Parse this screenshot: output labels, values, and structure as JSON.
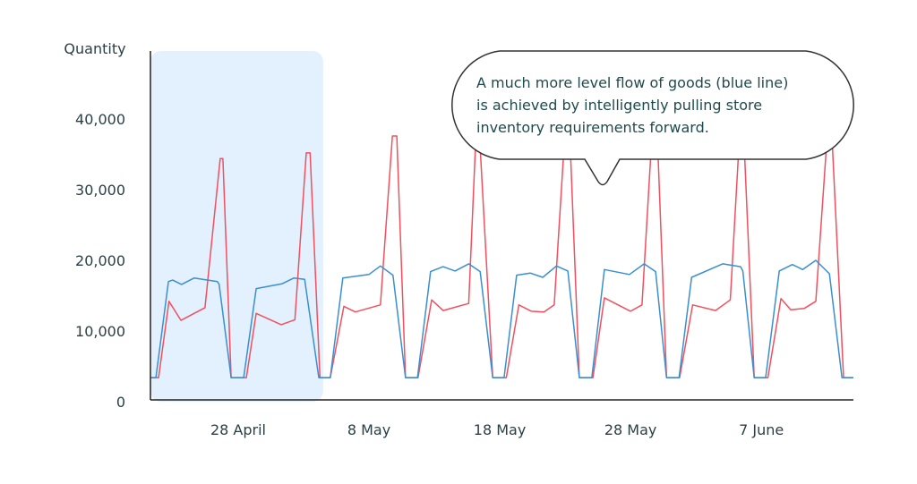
{
  "chart_data": {
    "type": "line",
    "title": "",
    "xlabel": "",
    "ylabel": "Quantity",
    "xlim": [
      "Apr 21 07:00",
      "Jun 14 01:00"
    ],
    "ylim": [
      0,
      50000
    ],
    "yticks": [
      0,
      10000,
      20000,
      30000,
      40000
    ],
    "ytick_labels": [
      "0",
      "10,000",
      "20,000",
      "30,000",
      "40,000"
    ],
    "xticks": [
      "Apr 28 00:00",
      "May 8 00:00",
      "May 18 00:00",
      "May 28 00:00",
      "Jun 7 00:00"
    ],
    "xtick_labels": [
      "28 April",
      "8 May",
      "18 May",
      "28 May",
      "7 June"
    ],
    "grid": false,
    "highlight_range": [
      "Apr 21 07:00",
      "May 4 12:00"
    ],
    "colors": {
      "red": "#f0505f",
      "blue": "#3a8fd0",
      "highlight": "#e3f0fd",
      "text": "#2b4046"
    },
    "series": [
      {
        "color": "#f0505f",
        "points": [
          [
            "Apr 21 07:00",
            3400
          ],
          [
            "Apr 21 22:00",
            3400
          ],
          [
            "Apr 22 17:00",
            14200
          ],
          [
            "Apr 23 15:00",
            11500
          ],
          [
            "Apr 25 11:00",
            13300
          ],
          [
            "Apr 26 15:00",
            34400
          ],
          [
            "Apr 26 20:00",
            34400
          ],
          [
            "Apr 27 11:00",
            3400
          ],
          [
            "Apr 28 15:00",
            3400
          ],
          [
            "Apr 29 09:00",
            12500
          ],
          [
            "May 1 07:00",
            10900
          ],
          [
            "May 2 08:00",
            11600
          ],
          [
            "May 3 05:00",
            35200
          ],
          [
            "May 3 12:00",
            35200
          ],
          [
            "May 4 06:00",
            3400
          ],
          [
            "May 5 01:00",
            3400
          ],
          [
            "May 6 02:00",
            13500
          ],
          [
            "May 6 23:00",
            12700
          ],
          [
            "May 8 21:00",
            13700
          ],
          [
            "May 9 19:00",
            37600
          ],
          [
            "May 10 03:00",
            37600
          ],
          [
            "May 10 19:00",
            3400
          ],
          [
            "May 11 18:00",
            3400
          ],
          [
            "May 12 19:00",
            14400
          ],
          [
            "May 13 16:00",
            12900
          ],
          [
            "May 15 15:00",
            13900
          ],
          [
            "May 16 05:00",
            39000
          ],
          [
            "May 16 10:00",
            39000
          ],
          [
            "May 17 11:00",
            3400
          ],
          [
            "May 18 12:00",
            3400
          ],
          [
            "May 19 11:00",
            13700
          ],
          [
            "May 20 10:00",
            12800
          ],
          [
            "May 21 09:00",
            12700
          ],
          [
            "May 22 04:00",
            13700
          ],
          [
            "May 23 02:00",
            41000
          ],
          [
            "May 23 07:00",
            41000
          ],
          [
            "May 24 02:00",
            3400
          ],
          [
            "May 25 03:00",
            3400
          ],
          [
            "May 26 00:00",
            14700
          ],
          [
            "May 28 00:00",
            12800
          ],
          [
            "May 28 21:00",
            13700
          ],
          [
            "May 29 17:00",
            40000
          ],
          [
            "May 30 00:00",
            40000
          ],
          [
            "May 30 18:00",
            3400
          ],
          [
            "May 31 18:00",
            3400
          ],
          [
            "Jun 1 18:00",
            13700
          ],
          [
            "Jun 3 12:00",
            12900
          ],
          [
            "Jun 4 15:00",
            14400
          ],
          [
            "Jun 5 09:00",
            39000
          ],
          [
            "Jun 5 15:00",
            39000
          ],
          [
            "Jun 6 11:00",
            3400
          ],
          [
            "Jun 7 12:00",
            3400
          ],
          [
            "Jun 8 12:00",
            14600
          ],
          [
            "Jun 9 06:00",
            13000
          ],
          [
            "Jun 10 07:00",
            13200
          ],
          [
            "Jun 11 04:00",
            14200
          ],
          [
            "Jun 12 03:00",
            40000
          ],
          [
            "Jun 12 08:00",
            40000
          ],
          [
            "Jun 13 07:00",
            3400
          ],
          [
            "Jun 14 01:00",
            3400
          ]
        ]
      },
      {
        "color": "#3a8fd0",
        "points": [
          [
            "Apr 21 07:00",
            3400
          ],
          [
            "Apr 21 17:00",
            3400
          ],
          [
            "Apr 22 16:00",
            17000
          ],
          [
            "Apr 23 00:00",
            17200
          ],
          [
            "Apr 23 16:00",
            16600
          ],
          [
            "Apr 24 15:00",
            17500
          ],
          [
            "Apr 26 10:00",
            17000
          ],
          [
            "Apr 26 13:00",
            16600
          ],
          [
            "Apr 27 11:00",
            3400
          ],
          [
            "Apr 28 10:00",
            3400
          ],
          [
            "Apr 29 09:00",
            16000
          ],
          [
            "May 1 09:00",
            16700
          ],
          [
            "May 2 06:00",
            17500
          ],
          [
            "May 3 02:00",
            17300
          ],
          [
            "May 4 04:00",
            3400
          ],
          [
            "May 5 01:00",
            3400
          ],
          [
            "May 6 00:00",
            17500
          ],
          [
            "May 8 00:00",
            18000
          ],
          [
            "May 8 21:00",
            19200
          ],
          [
            "May 9 20:00",
            17900
          ],
          [
            "May 10 19:00",
            3400
          ],
          [
            "May 11 17:00",
            3400
          ],
          [
            "May 12 17:00",
            18400
          ],
          [
            "May 13 16:00",
            19100
          ],
          [
            "May 14 14:00",
            18500
          ],
          [
            "May 15 15:00",
            19500
          ],
          [
            "May 16 12:00",
            18400
          ],
          [
            "May 17 11:00",
            3400
          ],
          [
            "May 18 08:00",
            3400
          ],
          [
            "May 19 07:00",
            17900
          ],
          [
            "May 20 08:00",
            18200
          ],
          [
            "May 21 07:00",
            17600
          ],
          [
            "May 22 08:00",
            19200
          ],
          [
            "May 23 05:00",
            18500
          ],
          [
            "May 24 02:00",
            3400
          ],
          [
            "May 25 01:00",
            3400
          ],
          [
            "May 26 00:00",
            18700
          ],
          [
            "May 27 22:00",
            18000
          ],
          [
            "May 29 01:00",
            19500
          ],
          [
            "May 29 22:00",
            18400
          ],
          [
            "May 30 18:00",
            3400
          ],
          [
            "May 31 17:00",
            3400
          ],
          [
            "Jun 1 16:00",
            17600
          ],
          [
            "Jun 4 01:00",
            19500
          ],
          [
            "Jun 5 10:00",
            19100
          ],
          [
            "Jun 5 14:00",
            18500
          ],
          [
            "Jun 6 11:00",
            3400
          ],
          [
            "Jun 7 08:00",
            3400
          ],
          [
            "Jun 8 09:00",
            18500
          ],
          [
            "Jun 9 09:00",
            19400
          ],
          [
            "Jun 10 04:00",
            18700
          ],
          [
            "Jun 11 04:00",
            20000
          ],
          [
            "Jun 12 05:00",
            18100
          ],
          [
            "Jun 13 04:00",
            3400
          ],
          [
            "Jun 14 01:00",
            3400
          ]
        ]
      }
    ],
    "annotation": {
      "lines": [
        "A much more level flow of goods (blue line)",
        "is achieved by intelligently pulling store",
        "inventory requirements forward."
      ]
    }
  }
}
